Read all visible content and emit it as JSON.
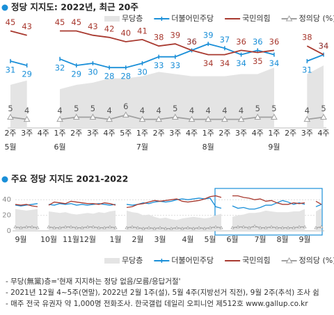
{
  "chart_data": [
    {
      "type": "line",
      "title": "정당 지지도: 2022년, 최근 20주",
      "categories": [
        "2주",
        "3주",
        "4주",
        "1주",
        "2주",
        "3주",
        "4주",
        "5주",
        "1주",
        "2주",
        "3주",
        "4주",
        "1주",
        "2주",
        "3주",
        "4주",
        "1주",
        "2주",
        "3주",
        "4주"
      ],
      "months": [
        {
          "value": 0,
          "label": "5월"
        },
        {
          "value": 3,
          "label": "6월"
        },
        {
          "value": 8,
          "label": "7월"
        },
        {
          "value": 12,
          "label": "8월"
        },
        {
          "value": 16,
          "label": "9월"
        }
      ],
      "ylim": [
        0,
        50
      ],
      "legend": "top-right",
      "data_labels": true,
      "series": [
        {
          "name": "무당층",
          "color": "#e4e4e4",
          "mark": "area",
          "values": [
            20,
            22,
            null,
            18,
            20,
            21,
            23,
            23,
            24,
            26,
            25,
            24,
            24,
            24,
            25,
            25,
            28,
            null,
            25,
            29
          ]
        },
        {
          "name": "더불어민주당",
          "color": "#1a8fd8",
          "mark": "plus",
          "values": [
            31,
            29,
            null,
            32,
            29,
            30,
            28,
            28,
            30,
            33,
            33,
            36,
            39,
            37,
            34,
            36,
            34,
            null,
            31,
            34
          ]
        },
        {
          "name": "국민의힘",
          "color": "#a8392f",
          "mark": "none",
          "values": [
            45,
            43,
            null,
            45,
            45,
            43,
            42,
            40,
            41,
            38,
            39,
            36,
            34,
            34,
            36,
            35,
            36,
            null,
            38,
            34
          ]
        },
        {
          "name": "정의당 (%)",
          "color": "#a0a0a0",
          "mark": "triangle",
          "values": [
            5,
            4,
            null,
            4,
            5,
            5,
            4,
            6,
            4,
            4,
            5,
            4,
            4,
            4,
            4,
            5,
            5,
            null,
            4,
            5
          ]
        }
      ]
    },
    {
      "type": "line",
      "title": "주요 정당 지지도 2021-2022",
      "xlim": [
        0,
        55
      ],
      "xticks": [
        {
          "value": 1,
          "label": "9월"
        },
        {
          "value": 6,
          "label": "10월"
        },
        {
          "value": 10,
          "label": "11월"
        },
        {
          "value": 13,
          "label": "12월"
        },
        {
          "value": 18,
          "label": "1월"
        },
        {
          "value": 22,
          "label": "2월"
        },
        {
          "value": 26,
          "label": "3월"
        },
        {
          "value": 31,
          "label": "4월"
        },
        {
          "value": 35,
          "label": "5월"
        },
        {
          "value": 39,
          "label": "6월"
        },
        {
          "value": 44,
          "label": "7월"
        },
        {
          "value": 48,
          "label": "8월"
        },
        {
          "value": 52,
          "label": "9월"
        }
      ],
      "ylim": [
        0,
        50
      ],
      "yticks": [
        0,
        20,
        40
      ],
      "grid": true,
      "legend": "bottom",
      "series": [
        {
          "name": "무당층",
          "color": "#e4e4e4",
          "mark": "area",
          "values": [
            28,
            27,
            26,
            27,
            28,
            null,
            25,
            24,
            23,
            24,
            22,
            21,
            22,
            23,
            22,
            24,
            23,
            25,
            26,
            null,
            26,
            24,
            23,
            20,
            21,
            18,
            16,
            17,
            15,
            14,
            16,
            17,
            18,
            17,
            16,
            17,
            20,
            22,
            null,
            18,
            20,
            21,
            23,
            23,
            24,
            26,
            25,
            24,
            24,
            24,
            25,
            25,
            28,
            null,
            25,
            29
          ]
        },
        {
          "name": "더불어민주당",
          "color": "#1a8fd8",
          "mark": "plus",
          "values": [
            33,
            32,
            33,
            34,
            35,
            null,
            34,
            33,
            35,
            34,
            35,
            33,
            34,
            33,
            34,
            35,
            34,
            33,
            34,
            null,
            34,
            33,
            34,
            36,
            35,
            37,
            38,
            37,
            38,
            40,
            41,
            40,
            41,
            42,
            41,
            42,
            31,
            29,
            null,
            32,
            29,
            30,
            28,
            28,
            30,
            33,
            33,
            36,
            39,
            37,
            34,
            36,
            34,
            null,
            31,
            34
          ]
        },
        {
          "name": "국민의힘",
          "color": "#a8392f",
          "mark": "none",
          "values": [
            34,
            33,
            34,
            32,
            31,
            null,
            33,
            37,
            36,
            35,
            38,
            37,
            36,
            35,
            35,
            34,
            36,
            35,
            33,
            null,
            30,
            31,
            34,
            35,
            37,
            39,
            38,
            39,
            40,
            41,
            38,
            37,
            38,
            39,
            41,
            44,
            45,
            43,
            null,
            45,
            45,
            43,
            42,
            40,
            41,
            38,
            39,
            36,
            34,
            34,
            36,
            35,
            36,
            null,
            38,
            34
          ]
        },
        {
          "name": "정의당 (%)",
          "color": "#a0a0a0",
          "mark": "triangle",
          "values": [
            5,
            4,
            5,
            5,
            4,
            null,
            5,
            4,
            4,
            5,
            5,
            4,
            4,
            5,
            5,
            4,
            4,
            5,
            4,
            null,
            4,
            5,
            4,
            3,
            4,
            3,
            4,
            3,
            3,
            4,
            3,
            4,
            3,
            4,
            3,
            4,
            5,
            4,
            null,
            4,
            5,
            5,
            4,
            6,
            4,
            4,
            5,
            4,
            4,
            4,
            4,
            5,
            5,
            null,
            4,
            5
          ]
        }
      ]
    }
  ],
  "notes": [
    "- 무당(無黨)층='현재 지지하는 정당 없음/모름/응답거절'",
    "- 2021년 12월 4~5주(연말), 2022년 2월 1주(설), 5월 4주(지방선거 직전), 9월 2주(추석) 조사 쉼",
    "- 매주 전국 유권자 약 1,000명 전화조사. 한국갤럽 데일리 오피니언 제512호 www.gallup.co.kr"
  ]
}
